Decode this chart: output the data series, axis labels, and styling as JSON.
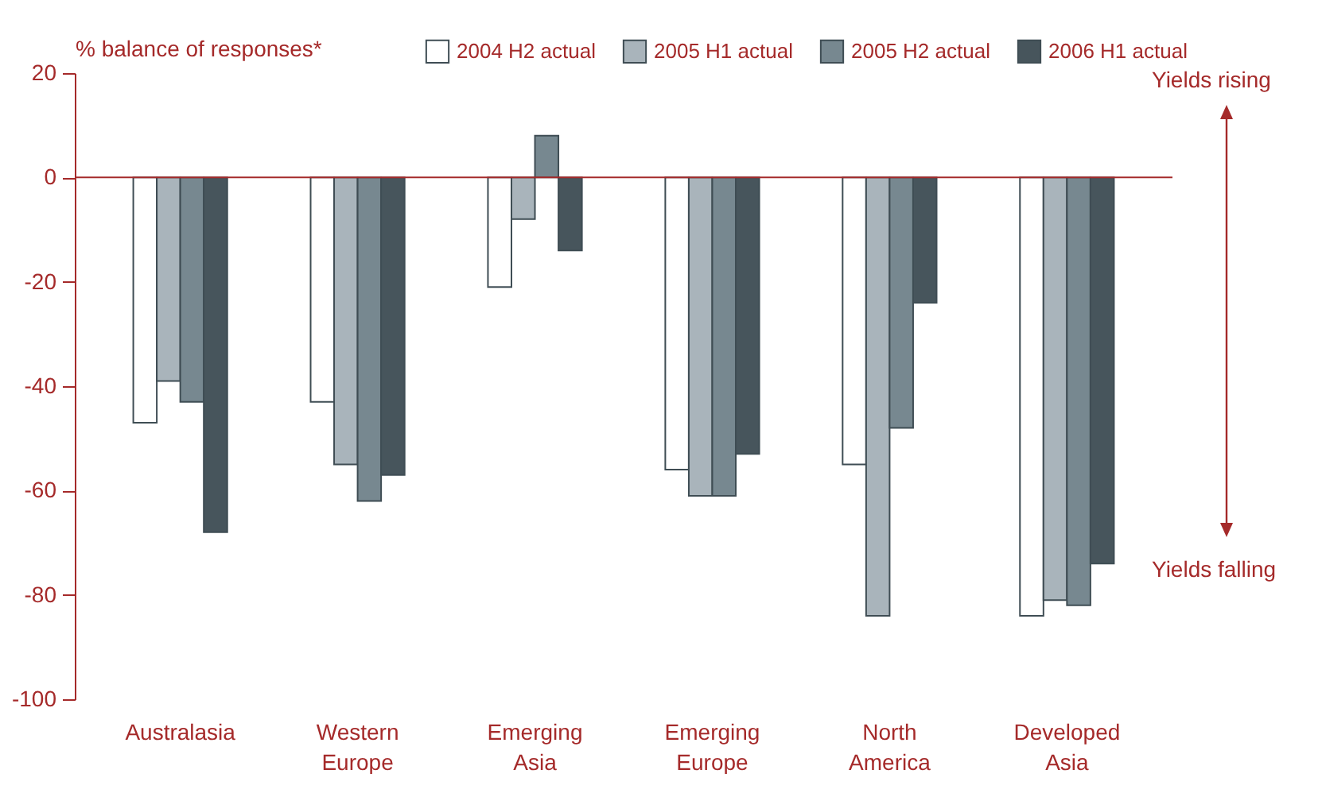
{
  "chart_data": {
    "type": "bar",
    "ylabel": "% balance of responses*",
    "categories": [
      "Australasia",
      "Western Europe",
      "Emerging Asia",
      "Emerging Europe",
      "North America",
      "Developed Asia"
    ],
    "series": [
      {
        "name": "2004 H2 actual",
        "color": "#ffffff",
        "values": [
          -47,
          -43,
          -21,
          -56,
          -55,
          -84
        ]
      },
      {
        "name": "2005 H1 actual",
        "color": "#a9b4bb",
        "values": [
          -39,
          -55,
          -8,
          -61,
          -84,
          -81
        ]
      },
      {
        "name": "2005 H2 actual",
        "color": "#778890",
        "values": [
          -43,
          -62,
          8,
          -61,
          -48,
          -82
        ]
      },
      {
        "name": "2006 H1 actual",
        "color": "#47555c",
        "values": [
          -68,
          -57,
          -14,
          -53,
          -24,
          -74
        ]
      }
    ],
    "ylim": [
      -100,
      20
    ],
    "yticks": [
      -100,
      -80,
      -60,
      -40,
      -20,
      0,
      20
    ],
    "ref_lines": [
      {
        "axis": "y",
        "value": 0,
        "color": "#a52a2a"
      }
    ],
    "annotations": [
      "Yields rising",
      "Yields falling"
    ],
    "legend": "top",
    "grid": false
  }
}
